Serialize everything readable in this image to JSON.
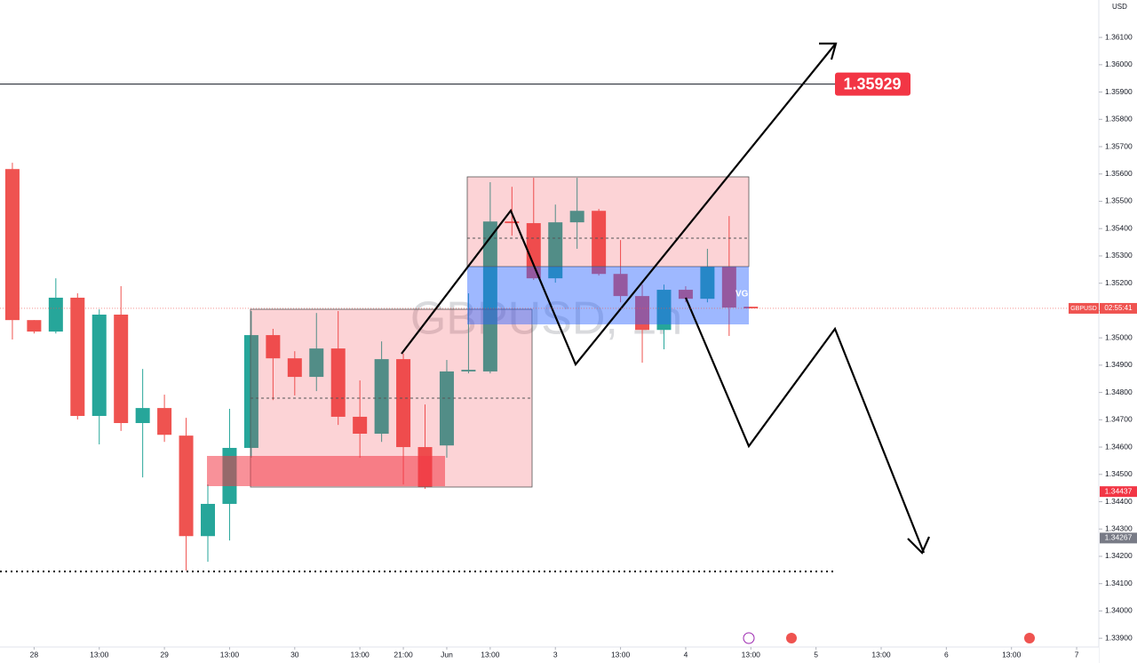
{
  "chart_data": {
    "type": "candlestick",
    "watermark": "GBPUSD, 1h",
    "currency": "USD",
    "open": [
      1.35618,
      1.35065,
      1.35023,
      1.35147,
      1.34714,
      1.35085,
      1.34688,
      1.34743,
      1.34642,
      1.34274,
      1.34392,
      1.34597,
      1.3501,
      1.34925,
      1.34857,
      1.34961,
      1.34711,
      1.34649,
      1.34922,
      1.346,
      1.34606,
      1.34877,
      1.34877,
      1.35426,
      1.3542,
      1.35218,
      1.35423,
      1.35465,
      1.35234,
      1.35153,
      1.35029,
      1.35176,
      1.35143,
      1.3526,
      1.35114
    ],
    "high": [
      1.35641,
      1.35065,
      1.35218,
      1.35163,
      1.35104,
      1.35189,
      1.34886,
      1.34792,
      1.34707,
      1.34463,
      1.3474,
      1.35098,
      1.35033,
      1.34951,
      1.35091,
      1.35098,
      1.34844,
      1.34987,
      1.34942,
      1.34756,
      1.34919,
      1.35163,
      1.3557,
      1.35553,
      1.35586,
      1.35488,
      1.35586,
      1.35472,
      1.35358,
      1.35195,
      1.35195,
      1.35189,
      1.35326,
      1.35446,
      1.35114
    ],
    "low": [
      1.34994,
      1.35016,
      1.35016,
      1.34701,
      1.3461,
      1.34659,
      1.34489,
      1.34619,
      1.34148,
      1.3418,
      1.34258,
      1.34561,
      1.34772,
      1.34789,
      1.34805,
      1.34681,
      1.34561,
      1.34619,
      1.34463,
      1.34447,
      1.34561,
      1.3487,
      1.3487,
      1.35374,
      1.35212,
      1.35202,
      1.35326,
      1.35228,
      1.3513,
      1.34909,
      1.34958,
      1.3513,
      1.3513,
      1.35007,
      1.35108
    ],
    "close": [
      1.35065,
      1.35023,
      1.35147,
      1.34714,
      1.35085,
      1.34688,
      1.34743,
      1.34645,
      1.34274,
      1.34392,
      1.34597,
      1.3501,
      1.34925,
      1.34857,
      1.34961,
      1.34711,
      1.34649,
      1.34922,
      1.346,
      1.34454,
      1.34877,
      1.34883,
      1.35426,
      1.3542,
      1.35218,
      1.35423,
      1.35465,
      1.35234,
      1.35153,
      1.35029,
      1.35176,
      1.35143,
      1.3526,
      1.35111,
      1.35108
    ],
    "up_color": "#26a69a",
    "down_color": "#ef5350",
    "ylim": [
      1.33868,
      1.36237
    ],
    "yticks": [
      {
        "value": 1.361,
        "label": "1.36100"
      },
      {
        "value": 1.36,
        "label": "1.36000"
      },
      {
        "value": 1.359,
        "label": "1.35900"
      },
      {
        "value": 1.358,
        "label": "1.35800"
      },
      {
        "value": 1.357,
        "label": "1.35700"
      },
      {
        "value": 1.356,
        "label": "1.35600"
      },
      {
        "value": 1.355,
        "label": "1.35500"
      },
      {
        "value": 1.354,
        "label": "1.35400"
      },
      {
        "value": 1.353,
        "label": "1.35300"
      },
      {
        "value": 1.352,
        "label": "1.35200"
      },
      {
        "value": 1.351,
        "label": "1.35100"
      },
      {
        "value": 1.35,
        "label": "1.35000"
      },
      {
        "value": 1.349,
        "label": "1.34900"
      },
      {
        "value": 1.348,
        "label": "1.34800"
      },
      {
        "value": 1.347,
        "label": "1.34700"
      },
      {
        "value": 1.346,
        "label": "1.34600"
      },
      {
        "value": 1.345,
        "label": "1.34500"
      },
      {
        "value": 1.344,
        "label": "1.34400"
      },
      {
        "value": 1.343,
        "label": "1.34300"
      },
      {
        "value": 1.342,
        "label": "1.34200"
      },
      {
        "value": 1.341,
        "label": "1.34100"
      },
      {
        "value": 1.34,
        "label": "1.34000"
      },
      {
        "value": 1.339,
        "label": "1.33900"
      }
    ],
    "xlim": [
      -0.57,
      50.02
    ],
    "xticks": [
      {
        "value": 1,
        "label": "28"
      },
      {
        "value": 4,
        "label": "13:00"
      },
      {
        "value": 7,
        "label": "29"
      },
      {
        "value": 10,
        "label": "13:00"
      },
      {
        "value": 13,
        "label": "30"
      },
      {
        "value": 16,
        "label": "13:00"
      },
      {
        "value": 18,
        "label": "21:00"
      },
      {
        "value": 20,
        "label": "Jun"
      },
      {
        "value": 22,
        "label": "13:00"
      },
      {
        "value": 25,
        "label": "3"
      },
      {
        "value": 28,
        "label": "13:00"
      },
      {
        "value": 31,
        "label": "4"
      },
      {
        "value": 34,
        "label": "13:00"
      },
      {
        "value": 37,
        "label": "5"
      },
      {
        "value": 40,
        "label": "13:00"
      },
      {
        "value": 43,
        "label": "6"
      },
      {
        "value": 46,
        "label": "13:00"
      },
      {
        "value": 49,
        "label": "7"
      }
    ],
    "target_level": 1.35929,
    "axis_markers": [
      1.34437,
      1.34267
    ],
    "price_symbol": "GBPUSD",
    "countdown": "02:55:41",
    "zone_label": "VG"
  }
}
